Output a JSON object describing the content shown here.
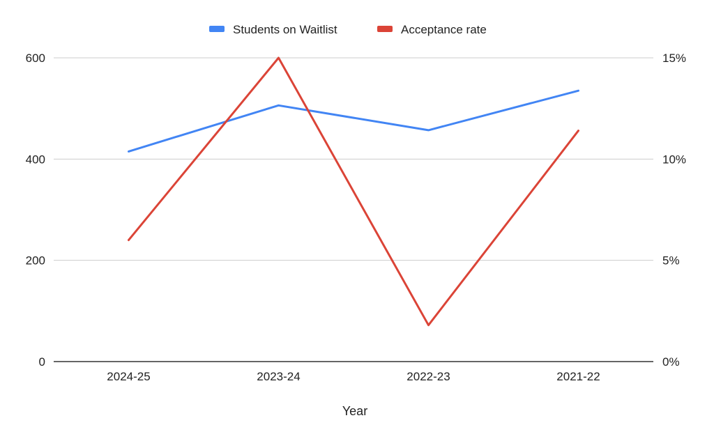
{
  "chart_data": {
    "type": "line",
    "title": "",
    "xlabel": "Year",
    "ylabel": "",
    "y2label": "",
    "categories": [
      "2024-25",
      "2023-24",
      "2022-23",
      "2021-22"
    ],
    "ylim": [
      0,
      600
    ],
    "yticks": [
      0,
      200,
      400,
      600
    ],
    "ytick_labels": [
      "0",
      "200",
      "400",
      "600"
    ],
    "y2lim": [
      0,
      0.15
    ],
    "y2ticks": [
      0,
      0.05,
      0.1,
      0.15
    ],
    "y2tick_labels": [
      "0%",
      "5%",
      "10%",
      "15%"
    ],
    "grid": true,
    "legend_position": "top",
    "series": [
      {
        "name": "Students on Waitlist",
        "axis": "left",
        "color": "#4285f4",
        "values": [
          415,
          506,
          457,
          535
        ]
      },
      {
        "name": "Acceptance rate",
        "axis": "right",
        "color": "#db4437",
        "values": [
          0.06,
          0.15,
          0.018,
          0.114
        ]
      }
    ]
  }
}
